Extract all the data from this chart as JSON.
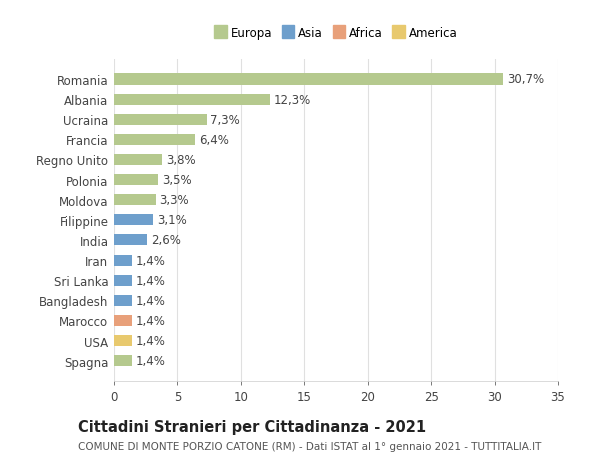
{
  "categories": [
    "Romania",
    "Albania",
    "Ucraina",
    "Francia",
    "Regno Unito",
    "Polonia",
    "Moldova",
    "Filippine",
    "India",
    "Iran",
    "Sri Lanka",
    "Bangladesh",
    "Marocco",
    "USA",
    "Spagna"
  ],
  "values": [
    30.7,
    12.3,
    7.3,
    6.4,
    3.8,
    3.5,
    3.3,
    3.1,
    2.6,
    1.4,
    1.4,
    1.4,
    1.4,
    1.4,
    1.4
  ],
  "labels": [
    "30,7%",
    "12,3%",
    "7,3%",
    "6,4%",
    "3,8%",
    "3,5%",
    "3,3%",
    "3,1%",
    "2,6%",
    "1,4%",
    "1,4%",
    "1,4%",
    "1,4%",
    "1,4%",
    "1,4%"
  ],
  "colors": [
    "#b5c98e",
    "#b5c98e",
    "#b5c98e",
    "#b5c98e",
    "#b5c98e",
    "#b5c98e",
    "#b5c98e",
    "#6e9fcc",
    "#6e9fcc",
    "#6e9fcc",
    "#6e9fcc",
    "#6e9fcc",
    "#e8a07a",
    "#e8c96e",
    "#b5c98e"
  ],
  "legend_labels": [
    "Europa",
    "Asia",
    "Africa",
    "America"
  ],
  "legend_colors": [
    "#b5c98e",
    "#6e9fcc",
    "#e8a07a",
    "#e8c96e"
  ],
  "title": "Cittadini Stranieri per Cittadinanza - 2021",
  "subtitle": "COMUNE DI MONTE PORZIO CATONE (RM) - Dati ISTAT al 1° gennaio 2021 - TUTTITALIA.IT",
  "xlim": [
    0,
    35
  ],
  "xticks": [
    0,
    5,
    10,
    15,
    20,
    25,
    30,
    35
  ],
  "background_color": "#ffffff",
  "grid_color": "#e0e0e0",
  "bar_height": 0.55,
  "label_fontsize": 8.5,
  "tick_fontsize": 8.5,
  "title_fontsize": 10.5,
  "subtitle_fontsize": 7.5
}
